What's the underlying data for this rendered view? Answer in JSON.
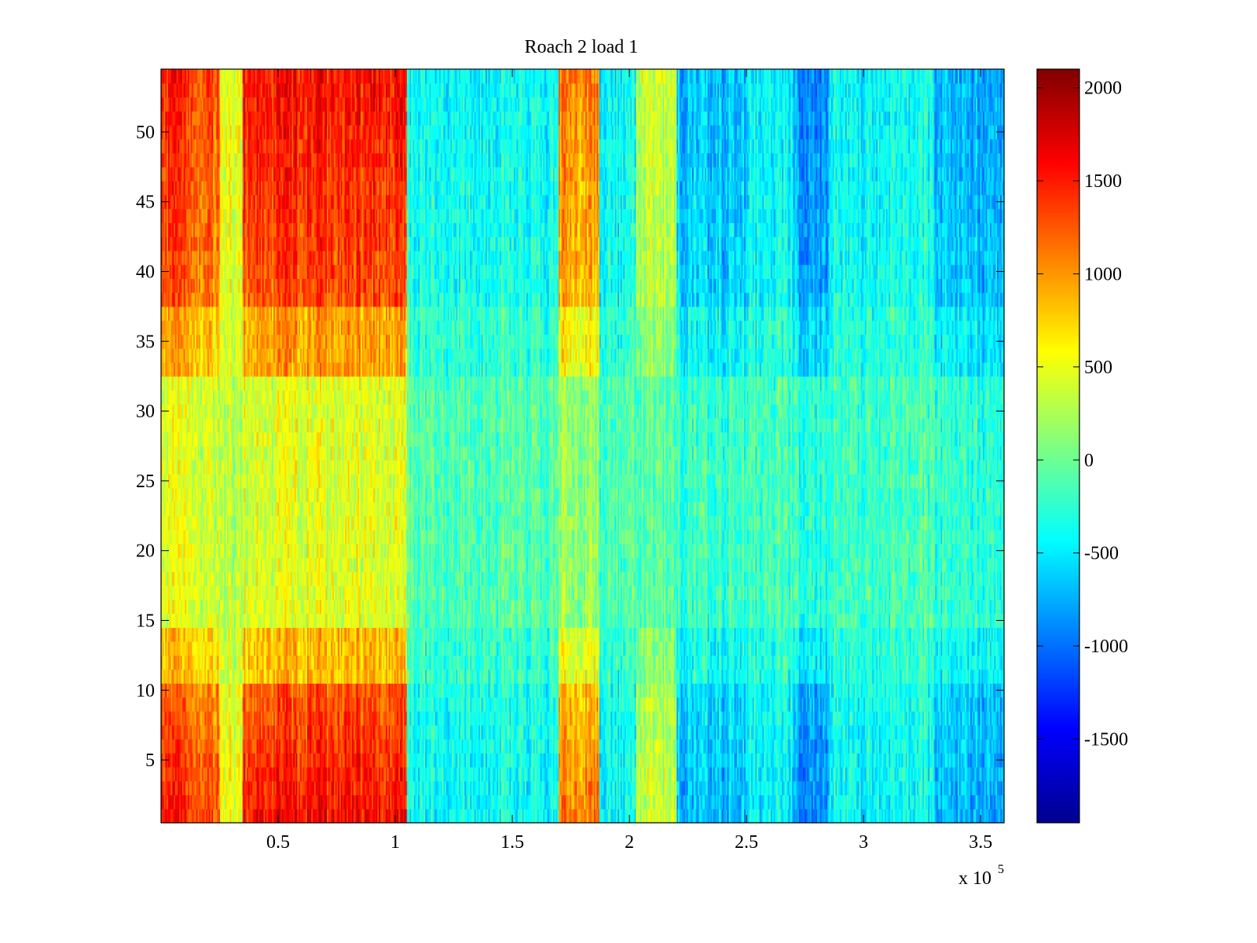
{
  "chart_data": {
    "type": "heatmap",
    "title": "Roach 2 load 1",
    "xlabel": "",
    "ylabel": "",
    "x_exponent_label": "x 10",
    "x_exponent_power": "5",
    "xlim": [
      0,
      3.6
    ],
    "ylim": [
      0.5,
      54.5
    ],
    "x_ticks": [
      0.5,
      1,
      1.5,
      2,
      2.5,
      3,
      3.5
    ],
    "x_tick_labels": [
      "0.5",
      "1",
      "1.5",
      "2",
      "2.5",
      "3",
      "3.5"
    ],
    "y_ticks": [
      5,
      10,
      15,
      20,
      25,
      30,
      35,
      40,
      45,
      50
    ],
    "y_tick_labels": [
      "5",
      "10",
      "15",
      "20",
      "25",
      "30",
      "35",
      "40",
      "45",
      "50"
    ],
    "rows": 54,
    "colormap": "jet",
    "clim": [
      -1950,
      2100
    ],
    "colorbar_ticks": [
      2000,
      1500,
      1000,
      500,
      0,
      -500,
      -1000,
      -1500
    ],
    "colorbar_tick_labels": [
      "2000",
      "1500",
      "1000",
      "500",
      "0",
      "-500",
      "-1000",
      "-1500"
    ],
    "column_bands": [
      {
        "x_start": 0.0,
        "x_end": 0.1,
        "edge_rows": 1500,
        "center_rows": 450
      },
      {
        "x_start": 0.1,
        "x_end": 0.25,
        "edge_rows": 1300,
        "center_rows": 400
      },
      {
        "x_start": 0.25,
        "x_end": 0.35,
        "edge_rows": 500,
        "center_rows": 300
      },
      {
        "x_start": 0.35,
        "x_end": 1.05,
        "edge_rows": 1550,
        "center_rows": 450
      },
      {
        "x_start": 1.05,
        "x_end": 1.7,
        "edge_rows": -400,
        "center_rows": -100
      },
      {
        "x_start": 1.7,
        "x_end": 1.87,
        "edge_rows": 1100,
        "center_rows": 150
      },
      {
        "x_start": 1.87,
        "x_end": 2.03,
        "edge_rows": -450,
        "center_rows": -150
      },
      {
        "x_start": 2.03,
        "x_end": 2.2,
        "edge_rows": 400,
        "center_rows": -50
      },
      {
        "x_start": 2.2,
        "x_end": 2.5,
        "edge_rows": -700,
        "center_rows": -200
      },
      {
        "x_start": 2.5,
        "x_end": 2.7,
        "edge_rows": -450,
        "center_rows": -150
      },
      {
        "x_start": 2.7,
        "x_end": 2.85,
        "edge_rows": -900,
        "center_rows": -250
      },
      {
        "x_start": 2.85,
        "x_end": 3.3,
        "edge_rows": -400,
        "center_rows": -150
      },
      {
        "x_start": 3.3,
        "x_end": 3.6,
        "edge_rows": -750,
        "center_rows": -250
      }
    ]
  }
}
